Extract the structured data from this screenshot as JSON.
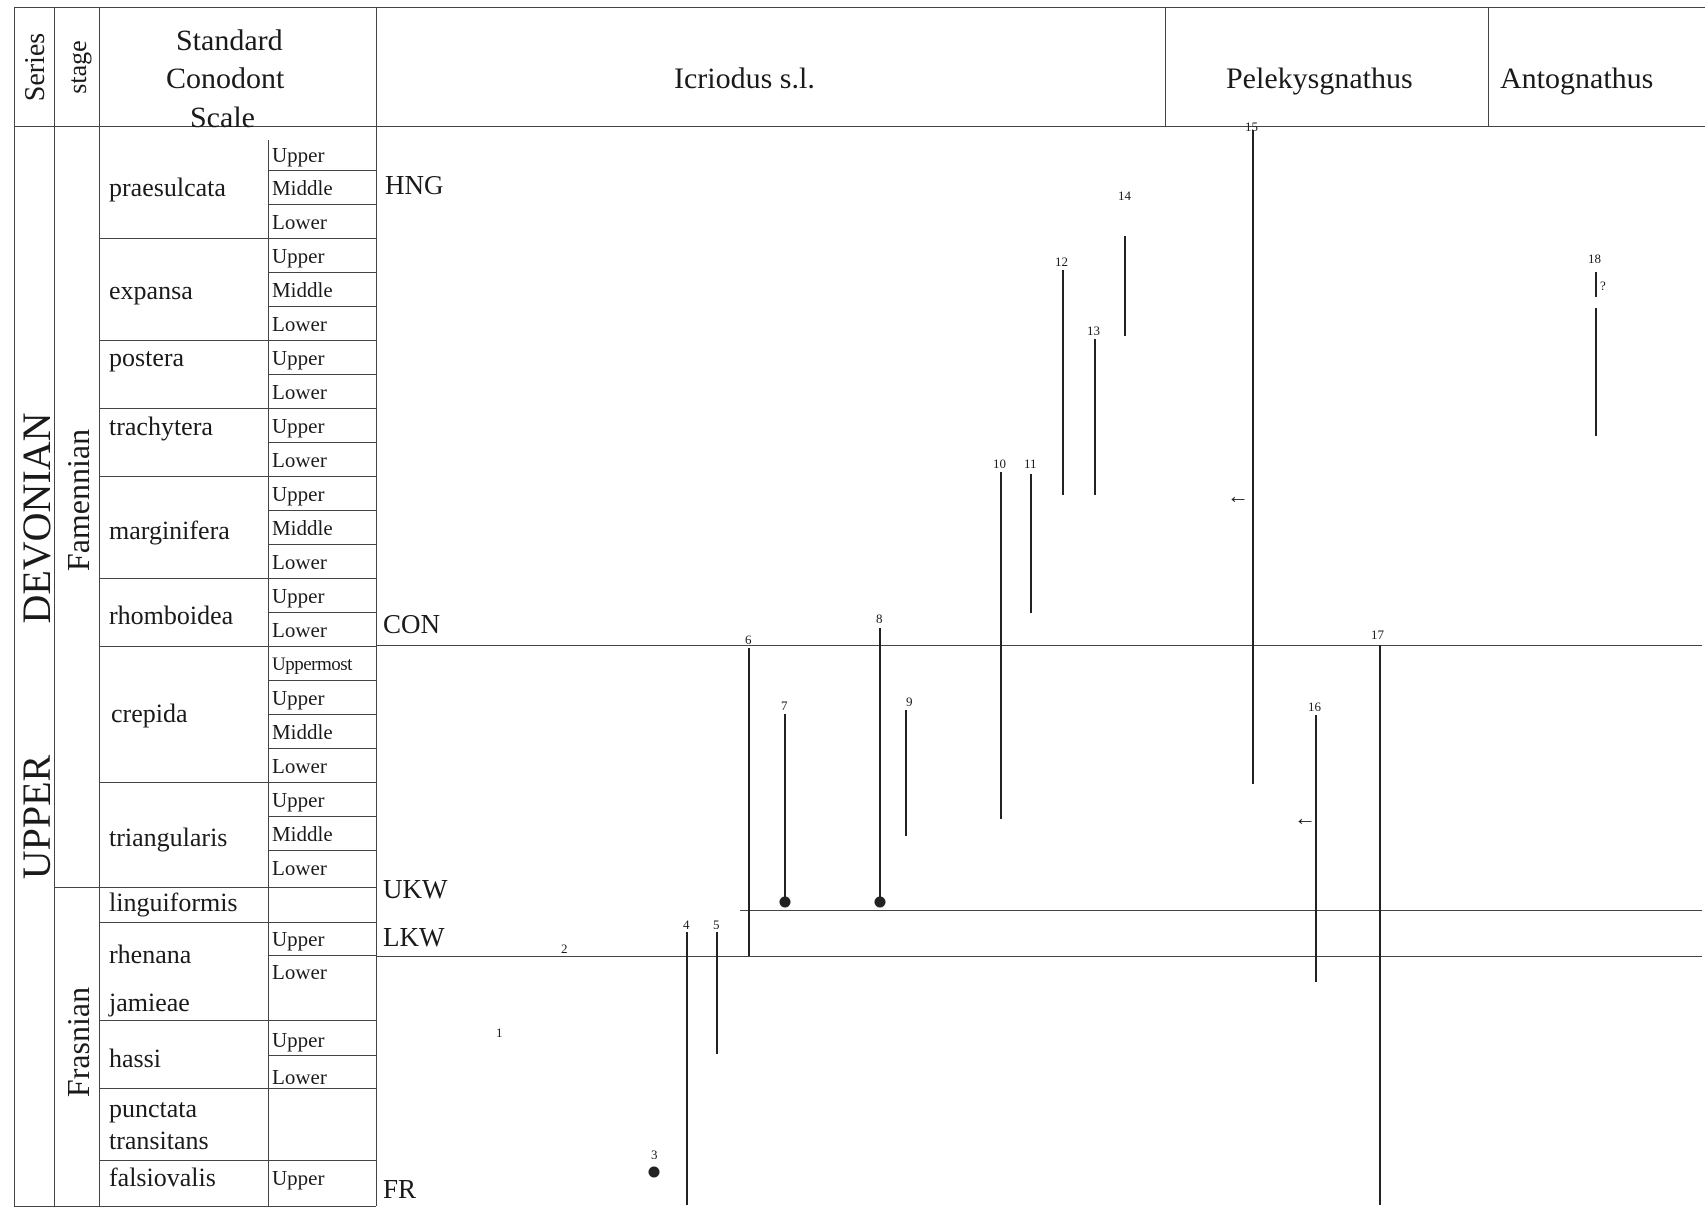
{
  "headers": {
    "series": "Series",
    "stage": "stage",
    "scale_line1": "Standard",
    "scale_line2": "Conodont",
    "scale_line3": "Scale",
    "genus_icriodus": "Icriodus s.l.",
    "genus_pelekysgnathus": "Pelekysgnathus",
    "genus_antognathus": "Antognathus"
  },
  "series": {
    "part1": "UPPER",
    "part2": "DEVONIAN"
  },
  "stages": {
    "famennian": "Famennian",
    "frasnian": "Frasnian"
  },
  "zones": [
    {
      "name": "praesulcata",
      "subzones": [
        "Upper",
        "Middle",
        "Lower"
      ]
    },
    {
      "name": "expansa",
      "subzones": [
        "Upper",
        "Middle",
        "Lower"
      ]
    },
    {
      "name": "postera",
      "subzones": [
        "Upper",
        "Lower"
      ]
    },
    {
      "name": "trachytera",
      "subzones": [
        "Upper",
        "Lower"
      ]
    },
    {
      "name": "marginifera",
      "subzones": [
        "Upper",
        "Middle",
        "Lower"
      ]
    },
    {
      "name": "rhomboidea",
      "subzones": [
        "Upper",
        "Lower"
      ]
    },
    {
      "name": "crepida",
      "subzones": [
        "Uppermost",
        "Upper",
        "Middle",
        "Lower"
      ]
    },
    {
      "name": "triangularis",
      "subzones": [
        "Upper",
        "Middle",
        "Lower"
      ]
    },
    {
      "name": "linguiformis",
      "subzones": []
    },
    {
      "name": "rhenana",
      "subzones": [
        "Upper",
        "Lower"
      ]
    },
    {
      "name": "jamieae",
      "subzones": []
    },
    {
      "name": "hassi",
      "subzones": [
        "Upper",
        "Lower"
      ]
    },
    {
      "name": "punctata",
      "subzones": []
    },
    {
      "name": "transitans",
      "subzones": []
    },
    {
      "name": "falsiovalis",
      "subzones": [
        "Upper"
      ]
    }
  ],
  "events": [
    "HNG",
    "CON",
    "UKW",
    "LKW",
    "FR"
  ],
  "ranges": [
    "1",
    "2",
    "3",
    "4",
    "5",
    "6",
    "7",
    "8",
    "9",
    "10",
    "11",
    "12",
    "13",
    "14",
    "15",
    "16",
    "17",
    "18"
  ],
  "uncertain_mark": "?",
  "colors": {
    "ink": "#1a1a1a",
    "line": "#444444"
  }
}
